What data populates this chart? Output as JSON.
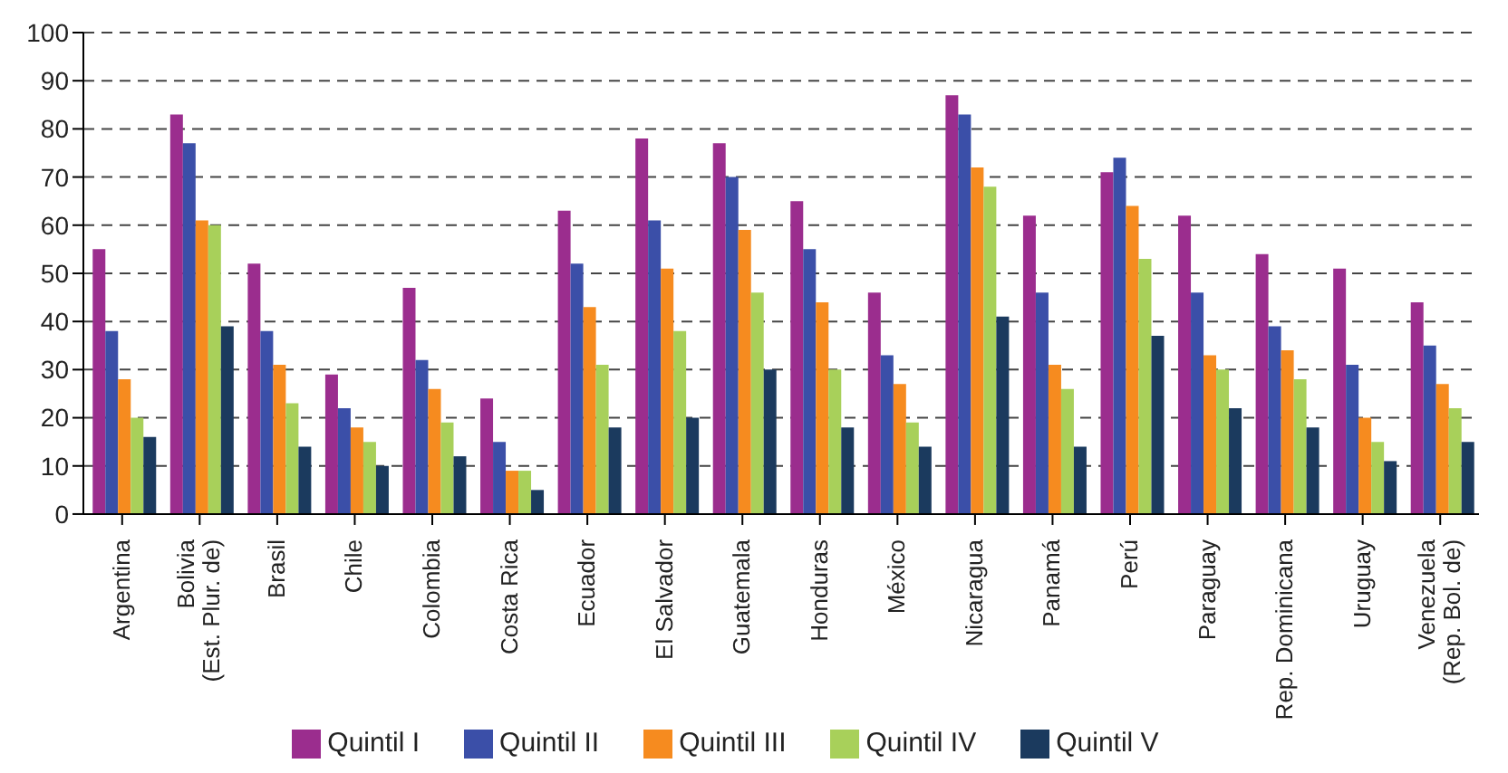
{
  "chart_data": {
    "type": "bar",
    "categories": [
      "Argentina",
      "Bolivia\n(Est. Plur. de)",
      "Brasil",
      "Chile",
      "Colombia",
      "Costa Rica",
      "Ecuador",
      "El Salvador",
      "Guatemala",
      "Honduras",
      "México",
      "Nicaragua",
      "Panamá",
      "Perú",
      "Paraguay",
      "Rep. Dominicana",
      "Uruguay",
      "Venezuela\n(Rep. Bol. de)"
    ],
    "series": [
      {
        "name": "Quintil I",
        "color": "#9b2d8e",
        "values": [
          55,
          83,
          52,
          29,
          47,
          24,
          63,
          78,
          77,
          65,
          46,
          87,
          62,
          71,
          62,
          54,
          51,
          44
        ]
      },
      {
        "name": "Quintil II",
        "color": "#3b4fa8",
        "values": [
          38,
          77,
          38,
          22,
          32,
          15,
          52,
          61,
          70,
          55,
          33,
          83,
          46,
          74,
          46,
          39,
          31,
          35
        ]
      },
      {
        "name": "Quintil III",
        "color": "#f68b1f",
        "values": [
          28,
          61,
          31,
          18,
          26,
          9,
          43,
          51,
          59,
          44,
          27,
          72,
          31,
          64,
          33,
          34,
          20,
          27
        ]
      },
      {
        "name": "Quintil IV",
        "color": "#a8d05a",
        "values": [
          20,
          60,
          23,
          15,
          19,
          9,
          31,
          38,
          46,
          30,
          19,
          68,
          26,
          53,
          30,
          28,
          15,
          22
        ]
      },
      {
        "name": "Quintil V",
        "color": "#1b3a5e",
        "values": [
          16,
          39,
          14,
          10,
          12,
          5,
          18,
          20,
          30,
          18,
          14,
          41,
          14,
          37,
          22,
          18,
          11,
          15
        ]
      }
    ],
    "ylim": [
      0,
      100
    ],
    "yticks": [
      0,
      10,
      20,
      30,
      40,
      50,
      60,
      70,
      80,
      90,
      100
    ],
    "grid": "y",
    "legend": "bottom"
  }
}
